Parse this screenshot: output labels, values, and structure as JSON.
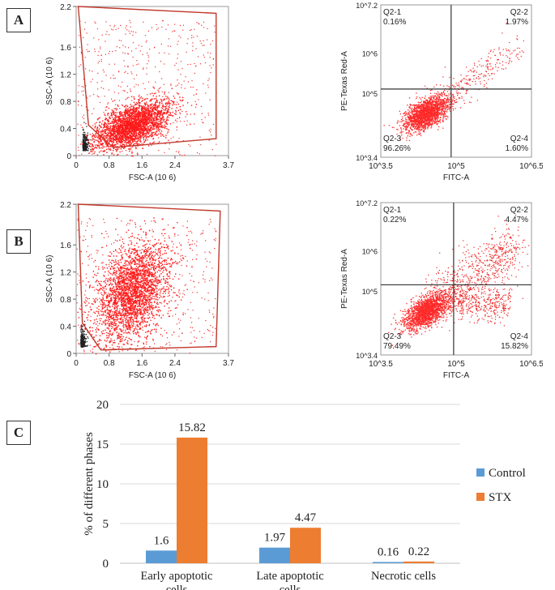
{
  "panels": {
    "a": "A",
    "b": "B",
    "c": "C"
  },
  "chart_data": [
    {
      "type": "scatter",
      "panel": "A",
      "title": "",
      "xlabel": "FSC-A",
      "xlabel_exp": "(10 6)",
      "ylabel": "SSC-A",
      "ylabel_exp": "(10 6)",
      "xlim": [
        0,
        3.7
      ],
      "ylim": [
        0,
        2.2
      ],
      "xticks": [
        "0",
        "0.8",
        "1.6",
        "2.4",
        "3.7"
      ],
      "xtick_values": [
        0,
        0.8,
        1.6,
        2.4,
        3.7
      ],
      "yticks": [
        "0",
        "0.4",
        "0.8",
        "1.2",
        "1.6",
        "2.2"
      ],
      "ytick_values": [
        0,
        0.4,
        0.8,
        1.2,
        1.6,
        2.2
      ],
      "gate": [
        [
          0.05,
          2.2
        ],
        [
          3.4,
          2.1
        ],
        [
          3.4,
          0.25
        ],
        [
          0.9,
          0.12
        ],
        [
          0.3,
          0.45
        ]
      ],
      "main_cluster": {
        "center": [
          1.35,
          0.45
        ],
        "spread": [
          0.45,
          0.15
        ],
        "tilt": 0.35
      },
      "debris": {
        "center": [
          0.15,
          0.08
        ]
      }
    },
    {
      "type": "scatter",
      "panel": "A",
      "title": "",
      "xlabel": "FITC-A",
      "ylabel": "PE-Texas Red-A",
      "log_scale": true,
      "xlim": [
        3.5,
        6.5
      ],
      "ylim": [
        3.4,
        7.2
      ],
      "xticks": [
        "10^3.5",
        "10^5",
        "10^6.5"
      ],
      "yticks": [
        "10^3.4",
        "10^5",
        "10^6",
        "10^7.2"
      ],
      "quadrant_lines": {
        "x": 4.9,
        "y": 5.1
      },
      "quadrants": [
        {
          "name": "Q2-1",
          "percent": "0.16%"
        },
        {
          "name": "Q2-2",
          "percent": "1.97%"
        },
        {
          "name": "Q2-3",
          "percent": "96.26%"
        },
        {
          "name": "Q2-4",
          "percent": "1.60%"
        }
      ]
    },
    {
      "type": "scatter",
      "panel": "B",
      "title": "",
      "xlabel": "FSC-A",
      "xlabel_exp": "(10 6)",
      "ylabel": "SSC-A",
      "ylabel_exp": "(10 6)",
      "xlim": [
        0,
        3.7
      ],
      "ylim": [
        0,
        2.2
      ],
      "xticks": [
        "0",
        "0.8",
        "1.6",
        "2.4",
        "3.7"
      ],
      "xtick_values": [
        0,
        0.8,
        1.6,
        2.4,
        3.7
      ],
      "yticks": [
        "0",
        "0.4",
        "0.8",
        "1.2",
        "1.6",
        "2.2"
      ],
      "ytick_values": [
        0,
        0.4,
        0.8,
        1.2,
        1.6,
        2.2
      ],
      "gate": [
        [
          0.05,
          2.2
        ],
        [
          3.5,
          2.1
        ],
        [
          3.4,
          0.1
        ],
        [
          0.6,
          0.05
        ],
        [
          0.15,
          0.45
        ]
      ],
      "main_cluster": {
        "center": [
          1.35,
          0.9
        ],
        "spread": [
          0.45,
          0.35
        ],
        "tilt": 0.5
      },
      "debris": {
        "center": [
          0.1,
          0.1
        ]
      }
    },
    {
      "type": "scatter",
      "panel": "B",
      "title": "",
      "xlabel": "FITC-A",
      "ylabel": "PE-Texas Red-A",
      "log_scale": true,
      "xlim": [
        3.5,
        6.5
      ],
      "ylim": [
        3.4,
        7.2
      ],
      "xticks": [
        "10^3.5",
        "10^5",
        "10^6.5"
      ],
      "yticks": [
        "10^3.4",
        "10^5",
        "10^6",
        "10^7.2"
      ],
      "quadrant_lines": {
        "x": 4.95,
        "y": 5.15
      },
      "quadrants": [
        {
          "name": "Q2-1",
          "percent": "0.22%"
        },
        {
          "name": "Q2-2",
          "percent": "4.47%"
        },
        {
          "name": "Q2-3",
          "percent": "79.49%"
        },
        {
          "name": "Q2-4",
          "percent": "15.82%"
        }
      ]
    },
    {
      "type": "bar",
      "panel": "C",
      "title": "",
      "xlabel": "",
      "ylabel": "% of different phases",
      "ylim": [
        0,
        20
      ],
      "yticks": [
        0,
        5,
        10,
        15,
        20
      ],
      "categories": [
        [
          "Early apoptotic",
          "cells"
        ],
        [
          "Late apoptotic",
          "cells"
        ],
        [
          "Necrotic cells"
        ]
      ],
      "series": [
        {
          "name": "Control",
          "color": "#5b9bd5",
          "values": [
            1.6,
            1.97,
            0.16
          ],
          "labels": [
            "1.6",
            "1.97",
            "0.16"
          ]
        },
        {
          "name": "STX",
          "color": "#ed7d31",
          "values": [
            15.82,
            4.47,
            0.22
          ],
          "labels": [
            "15.82",
            "4.47",
            "0.22"
          ]
        }
      ],
      "legend": "right"
    }
  ]
}
